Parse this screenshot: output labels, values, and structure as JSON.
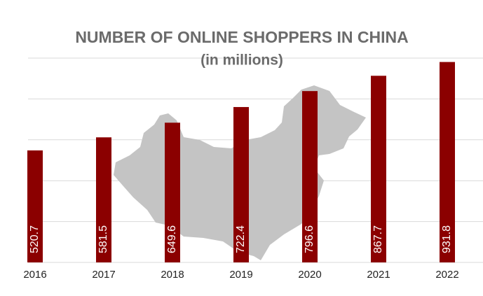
{
  "chart_data": {
    "type": "bar",
    "title": "NUMBER OF ONLINE SHOPPERS IN CHINA",
    "subtitle": "(in millions)",
    "categories": [
      "2016",
      "2017",
      "2018",
      "2019",
      "2020",
      "2021",
      "2022"
    ],
    "values": [
      520.7,
      581.5,
      649.6,
      722.4,
      796.6,
      867.7,
      931.8
    ],
    "color": "#8b0000",
    "ylim": [
      0,
      950
    ],
    "yticks": [
      0,
      190,
      380,
      570,
      760,
      950
    ],
    "grid": true
  }
}
